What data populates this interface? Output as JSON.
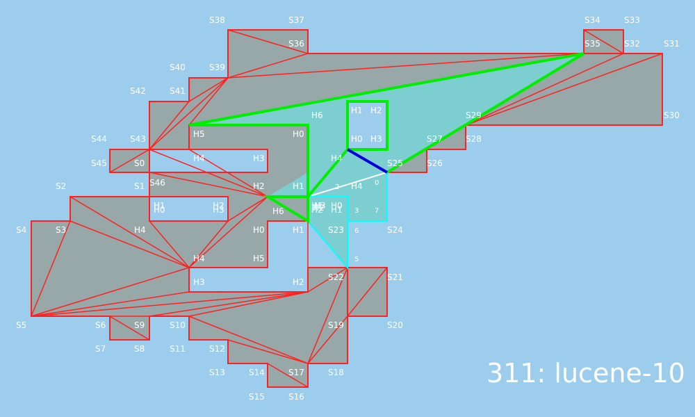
{
  "caption": "311: lucene-10",
  "colors": {
    "background": "#9dcdec",
    "polygon_fill": "#98a8a8",
    "edge": "#ff2020",
    "region_fill": "#7cced0",
    "path": "#00ee00",
    "cyan": "#00ffff",
    "white": "#ffffff",
    "blue": "#0000dd"
  },
  "labels": [
    {
      "id": "S0",
      "text": "S0"
    },
    {
      "id": "S1",
      "text": "S1"
    },
    {
      "id": "S2",
      "text": "S2"
    },
    {
      "id": "S3",
      "text": "S3"
    },
    {
      "id": "S4",
      "text": "S4"
    },
    {
      "id": "S5",
      "text": "S5"
    },
    {
      "id": "S6",
      "text": "S6"
    },
    {
      "id": "S7",
      "text": "S7"
    },
    {
      "id": "S8",
      "text": "S8"
    },
    {
      "id": "S9",
      "text": "S9"
    },
    {
      "id": "S10",
      "text": "S10"
    },
    {
      "id": "S11",
      "text": "S11"
    },
    {
      "id": "S12",
      "text": "S12"
    },
    {
      "id": "S13",
      "text": "S13"
    },
    {
      "id": "S14",
      "text": "S14"
    },
    {
      "id": "S15",
      "text": "S15"
    },
    {
      "id": "S16",
      "text": "S16"
    },
    {
      "id": "S17",
      "text": "S17"
    },
    {
      "id": "S18",
      "text": "S18"
    },
    {
      "id": "S19",
      "text": "S19"
    },
    {
      "id": "S20",
      "text": "S20"
    },
    {
      "id": "S21",
      "text": "S21"
    },
    {
      "id": "S22",
      "text": "S22"
    },
    {
      "id": "S23",
      "text": "S23"
    },
    {
      "id": "S24",
      "text": "S24"
    },
    {
      "id": "S25",
      "text": "S25"
    },
    {
      "id": "S26",
      "text": "S26"
    },
    {
      "id": "S27",
      "text": "S27"
    },
    {
      "id": "S28",
      "text": "S28"
    },
    {
      "id": "S29",
      "text": "S29"
    },
    {
      "id": "S30",
      "text": "S30"
    },
    {
      "id": "S31",
      "text": "S31"
    },
    {
      "id": "S32",
      "text": "S32"
    },
    {
      "id": "S33",
      "text": "S33"
    },
    {
      "id": "S34",
      "text": "S34"
    },
    {
      "id": "S35",
      "text": "S35"
    },
    {
      "id": "S36",
      "text": "S36"
    },
    {
      "id": "S37",
      "text": "S37"
    },
    {
      "id": "S38",
      "text": "S38"
    },
    {
      "id": "S39",
      "text": "S39"
    },
    {
      "id": "S40",
      "text": "S40"
    },
    {
      "id": "S41",
      "text": "S41"
    },
    {
      "id": "S42",
      "text": "S42"
    },
    {
      "id": "S43",
      "text": "S43"
    },
    {
      "id": "S44",
      "text": "S44"
    },
    {
      "id": "S45",
      "text": "S45"
    },
    {
      "id": "S46",
      "text": "S46"
    },
    {
      "id": "A-H5",
      "text": "H5"
    },
    {
      "id": "A-H6",
      "text": "H6"
    },
    {
      "id": "A-H0",
      "text": "H0"
    },
    {
      "id": "A-H1",
      "text": "H1"
    },
    {
      "id": "A-H2",
      "text": "H2"
    },
    {
      "id": "A-H3",
      "text": "H3"
    },
    {
      "id": "A-H4",
      "text": "H4"
    },
    {
      "id": "B-H1",
      "text": "H1"
    },
    {
      "id": "B-H2",
      "text": "H2"
    },
    {
      "id": "B-H0",
      "text": "H0"
    },
    {
      "id": "B-H3",
      "text": "H3"
    },
    {
      "id": "B-H4",
      "text": "H4"
    },
    {
      "id": "C-H0",
      "text": "H0"
    },
    {
      "id": "C-H1",
      "text": "H1"
    },
    {
      "id": "C-H2",
      "text": "H2"
    },
    {
      "id": "C-H3",
      "text": "H3"
    },
    {
      "id": "C-H4",
      "text": "H4"
    },
    {
      "id": "C-H5",
      "text": "H5"
    },
    {
      "id": "C-H6",
      "text": "H6"
    },
    {
      "id": "D-H0",
      "text": "H0"
    },
    {
      "id": "D-H1",
      "text": "H1"
    },
    {
      "id": "D-H2",
      "text": "H2"
    },
    {
      "id": "D-H3",
      "text": "H3"
    },
    {
      "id": "D-H4",
      "text": "H4"
    },
    {
      "id": "D-H1b",
      "text": "H1"
    },
    {
      "id": "D-H2b",
      "text": "H2"
    },
    {
      "id": "E-H0",
      "text": "H0"
    },
    {
      "id": "E-H1",
      "text": "H1"
    },
    {
      "id": "E-H2",
      "text": "H2"
    },
    {
      "id": "E-H3",
      "text": "H3"
    },
    {
      "id": "E-H4",
      "text": "H4"
    },
    {
      "id": "E-H5",
      "text": "H5"
    },
    {
      "id": "E-H6",
      "text": "H6"
    }
  ],
  "order_numbers": [
    {
      "id": "n0",
      "text": "0"
    },
    {
      "id": "n2",
      "text": "2"
    },
    {
      "id": "n3",
      "text": "3"
    },
    {
      "id": "n5",
      "text": "5"
    },
    {
      "id": "n6",
      "text": "6"
    },
    {
      "id": "n7",
      "text": "7"
    }
  ]
}
